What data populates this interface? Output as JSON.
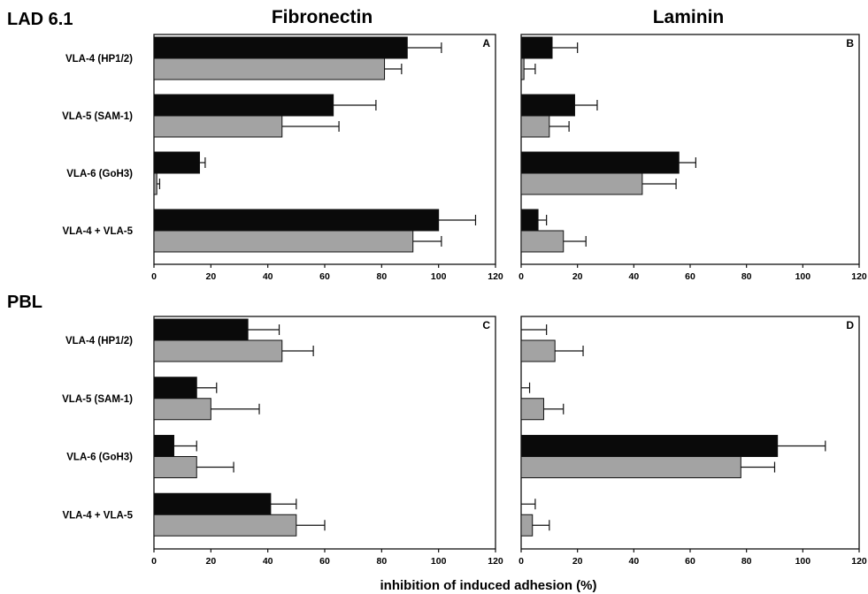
{
  "figure": {
    "column_titles": [
      "Fibronectin",
      "Laminin"
    ],
    "row_titles": [
      "LAD 6.1",
      "PBL"
    ],
    "xlabel": "inhibition of induced adhesion (%)"
  },
  "colors": {
    "series_black": "#0a0a0a",
    "series_gray": "#a3a3a3"
  },
  "chart_data": [
    {
      "type": "bar",
      "orientation": "horizontal",
      "panel": "A",
      "categories": [
        "VLA-4 (HP1/2)",
        "VLA-5 (SAM-1)",
        "VLA-6 (GoH3)",
        "VLA-4 + VLA-5"
      ],
      "series": [
        {
          "values": [
            89,
            63,
            16,
            100
          ],
          "errors": [
            12,
            15,
            2,
            13
          ]
        },
        {
          "values": [
            81,
            45,
            1,
            91
          ],
          "errors": [
            6,
            20,
            1,
            10
          ]
        }
      ],
      "xticks": [
        "0",
        "20",
        "40",
        "60",
        "80",
        "100",
        "120"
      ],
      "xlim": [
        0,
        120
      ]
    },
    {
      "type": "bar",
      "orientation": "horizontal",
      "panel": "B",
      "categories": [
        "VLA-4 (HP1/2)",
        "VLA-5 (SAM-1)",
        "VLA-6 (GoH3)",
        "VLA-4 + VLA-5"
      ],
      "series": [
        {
          "values": [
            11,
            19,
            56,
            6
          ],
          "errors": [
            9,
            8,
            6,
            3
          ]
        },
        {
          "values": [
            1,
            10,
            43,
            15
          ],
          "errors": [
            4,
            7,
            12,
            8
          ]
        }
      ],
      "xticks": [
        "0",
        "20",
        "40",
        "60",
        "80",
        "100",
        "120"
      ],
      "xlim": [
        0,
        120
      ]
    },
    {
      "type": "bar",
      "orientation": "horizontal",
      "panel": "C",
      "categories": [
        "VLA-4 (HP1/2)",
        "VLA-5 (SAM-1)",
        "VLA-6 (GoH3)",
        "VLA-4 + VLA-5"
      ],
      "series": [
        {
          "values": [
            33,
            15,
            7,
            41
          ],
          "errors": [
            11,
            7,
            8,
            9
          ]
        },
        {
          "values": [
            45,
            20,
            15,
            50
          ],
          "errors": [
            11,
            17,
            13,
            10
          ]
        }
      ],
      "xticks": [
        "0",
        "20",
        "40",
        "60",
        "80",
        "100",
        "120"
      ],
      "xlim": [
        0,
        120
      ]
    },
    {
      "type": "bar",
      "orientation": "horizontal",
      "panel": "D",
      "categories": [
        "VLA-4 (HP1/2)",
        "VLA-5 (SAM-1)",
        "VLA-6 (GoH3)",
        "VLA-4 + VLA-5"
      ],
      "series": [
        {
          "values": [
            0,
            0,
            91,
            0
          ],
          "errors": [
            9,
            3,
            17,
            5
          ]
        },
        {
          "values": [
            12,
            8,
            78,
            4
          ],
          "errors": [
            10,
            7,
            12,
            6
          ]
        }
      ],
      "xticks": [
        "0",
        "20",
        "40",
        "60",
        "80",
        "100",
        "120"
      ],
      "xlim": [
        0,
        120
      ]
    }
  ]
}
